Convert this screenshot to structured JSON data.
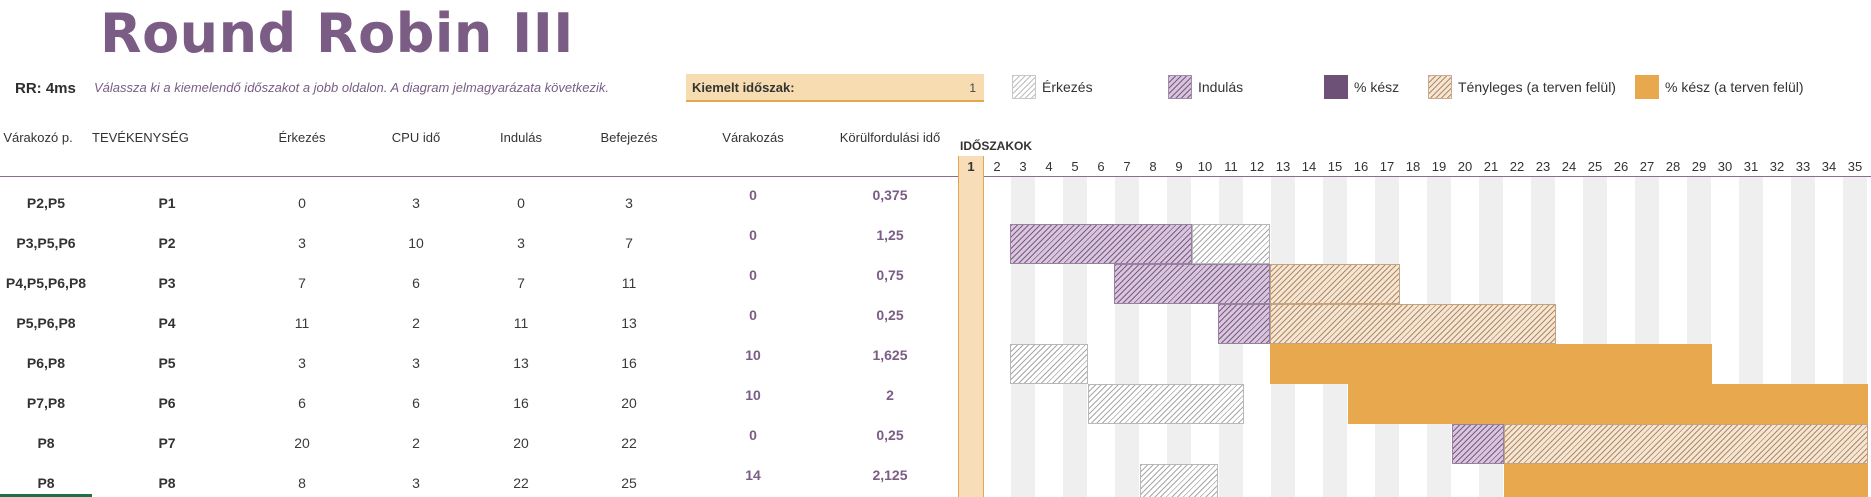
{
  "title": "Round Robin III",
  "rr_label": "RR: 4ms",
  "instruction": "Válassza ki a kiemelendő időszakot a jobb oldalon.  A diagram jelmagyarázata következik.",
  "highlight": {
    "label": "Kiemelt időszak:",
    "value": "1"
  },
  "legend": [
    {
      "label": "Érkezés",
      "icon": "arrival-hatch"
    },
    {
      "label": "Indulás",
      "icon": "start-hatch"
    },
    {
      "label": "% kész",
      "icon": "percent-complete-solid"
    },
    {
      "label": "Tényleges (a terven felül)",
      "icon": "actual-beyond-plan-hatch"
    },
    {
      "label": "% kész (a terven felül)",
      "icon": "percent-complete-beyond-plan-solid"
    }
  ],
  "columns": [
    "Várakozó p.",
    "TEVÉKENYSÉG",
    "Érkezés",
    "CPU idő",
    "Indulás",
    "Befejezés",
    "Várakozás",
    "Körülfordulási idő"
  ],
  "periods_label": "IDŐSZAKOK",
  "periods": [
    "1",
    "2",
    "3",
    "4",
    "5",
    "6",
    "7",
    "8",
    "9",
    "10",
    "11",
    "12",
    "13",
    "14",
    "15",
    "16",
    "17",
    "18",
    "19",
    "20",
    "21",
    "22",
    "23",
    "24",
    "25",
    "26",
    "27",
    "28",
    "29",
    "30",
    "31",
    "32",
    "33",
    "34",
    "35"
  ],
  "highlighted_period": 1,
  "rows": [
    {
      "waiting_p": "P2,P5",
      "activity": "P1",
      "arrival": "0",
      "cpu": "3",
      "start": "0",
      "end": "3",
      "wait": "0",
      "turnaround": "0,375"
    },
    {
      "waiting_p": "P3,P5,P6",
      "activity": "P2",
      "arrival": "3",
      "cpu": "10",
      "start": "3",
      "end": "7",
      "wait": "0",
      "turnaround": "1,25"
    },
    {
      "waiting_p": "P4,P5,P6,P8",
      "activity": "P3",
      "arrival": "7",
      "cpu": "6",
      "start": "7",
      "end": "11",
      "wait": "0",
      "turnaround": "0,75"
    },
    {
      "waiting_p": "P5,P6,P8",
      "activity": "P4",
      "arrival": "11",
      "cpu": "2",
      "start": "11",
      "end": "13",
      "wait": "0",
      "turnaround": "0,25"
    },
    {
      "waiting_p": "P6,P8",
      "activity": "P5",
      "arrival": "3",
      "cpu": "3",
      "start": "13",
      "end": "16",
      "wait": "10",
      "turnaround": "1,625"
    },
    {
      "waiting_p": "P7,P8",
      "activity": "P6",
      "arrival": "6",
      "cpu": "6",
      "start": "16",
      "end": "20",
      "wait": "10",
      "turnaround": "2"
    },
    {
      "waiting_p": "P8",
      "activity": "P7",
      "arrival": "20",
      "cpu": "2",
      "start": "20",
      "end": "22",
      "wait": "0",
      "turnaround": "0,25"
    },
    {
      "waiting_p": "P8",
      "activity": "P8",
      "arrival": "8",
      "cpu": "3",
      "start": "22",
      "end": "25",
      "wait": "14",
      "turnaround": "2,125"
    }
  ],
  "gantt_bars": [
    [],
    [
      {
        "type": "ind",
        "from": 3,
        "to": 9
      },
      {
        "type": "erk",
        "from": 10,
        "to": 12
      }
    ],
    [
      {
        "type": "ind",
        "from": 7,
        "to": 12
      },
      {
        "type": "act",
        "from": 13,
        "to": 17
      }
    ],
    [
      {
        "type": "ind",
        "from": 11,
        "to": 12
      },
      {
        "type": "act",
        "from": 13,
        "to": 23
      }
    ],
    [
      {
        "type": "erk",
        "from": 3,
        "to": 5
      },
      {
        "type": "pctx",
        "from": 13,
        "to": 29
      }
    ],
    [
      {
        "type": "erk",
        "from": 6,
        "to": 11
      },
      {
        "type": "pctx",
        "from": 16,
        "to": 35
      }
    ],
    [
      {
        "type": "ind",
        "from": 20,
        "to": 21
      },
      {
        "type": "act",
        "from": 22,
        "to": 35
      }
    ],
    [
      {
        "type": "erk",
        "from": 8,
        "to": 10
      },
      {
        "type": "pctx",
        "from": 22,
        "to": 35
      }
    ]
  ],
  "colors": {
    "accent_purple": "#7a5c84",
    "percent_complete": "#6e5177",
    "beyond_plan": "#e8a84e",
    "highlight_fill": "#f8deb8",
    "highlight_border": "#e4a751"
  }
}
